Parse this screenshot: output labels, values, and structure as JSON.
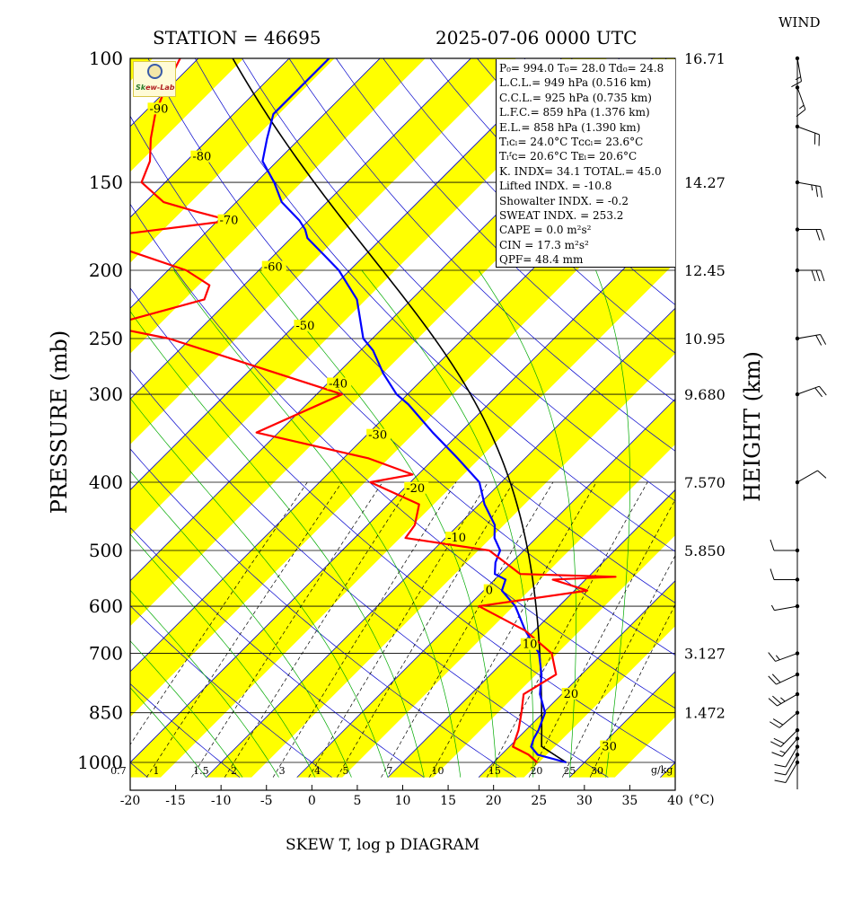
{
  "header": {
    "station": "STATION = 46695",
    "datetime": "2025-07-06 0000 UTC",
    "wind_label": "WIND",
    "footer": "SKEW T, log p DIAGRAM",
    "y_label_left": "PRESSURE (mb)",
    "y_label_right": "HEIGHT (km)",
    "unit_c": "(°C)",
    "unit_mix": "g/kg"
  },
  "logo": {
    "text_a": "Sk",
    "text_b": "ew-Lab"
  },
  "indices": [
    "P₀= 994.0 T₀= 28.0 Td₀= 24.8",
    "L.C.L.= 949 hPa (0.516 km)",
    "C.C.L.= 925 hPa (0.735 km)",
    "L.F.C.= 859 hPa (1.376 km)",
    "E.L.= 858 hPa (1.390 km)",
    "Tₗᴄₗ= 24.0°C Tᴄᴄₗ= 23.6°C",
    "Tₗᶠᴄ= 20.6°C  Tᴇₗ= 20.6°C",
    "K. INDX= 34.1  TOTAL.= 45.0",
    "Lifted INDX. = -10.8",
    "Showalter INDX. =   -0.2",
    "SWEAT INDX. =  253.2",
    "CAPE  =    0.0 m²s²",
    "CIN   =   17.3 m²s²",
    "QPF= 48.4 mm"
  ],
  "chart_data": {
    "type": "line",
    "title": "SKEW T, log p DIAGRAM",
    "xlabel": "(°C)",
    "ylabel": "PRESSURE (mb)",
    "y2label": "HEIGHT (km)",
    "xlim": [
      -20,
      40
    ],
    "ylim": [
      1050,
      100
    ],
    "y_scale": "log",
    "x_ticks": [
      -20,
      -15,
      -10,
      -5,
      0,
      5,
      10,
      15,
      20,
      25,
      30,
      35,
      40
    ],
    "x_tick_labels": [
      "-20",
      "-15",
      "-10",
      "-5",
      "0",
      "5",
      "10",
      "15",
      "20",
      "25",
      "30",
      "35",
      "40"
    ],
    "pressure_levels": [
      100,
      150,
      200,
      250,
      300,
      400,
      500,
      600,
      700,
      850,
      1000
    ],
    "pressure_labels": [
      "100",
      "150",
      "200",
      "250",
      "300",
      "400",
      "500",
      "600",
      "700",
      "850",
      "1000"
    ],
    "height_levels": [
      100,
      150,
      200,
      250,
      300,
      400,
      500,
      700,
      850
    ],
    "height_labels": [
      "16.71",
      "14.27",
      "12.45",
      "10.95",
      "9.680",
      "7.570",
      "5.850",
      "3.127",
      "1.472"
    ],
    "isotherm_labels": [
      {
        "t": -90,
        "p": 118,
        "text": "-90"
      },
      {
        "t": -80,
        "p": 138,
        "text": "-80"
      },
      {
        "t": -70,
        "p": 170,
        "text": "-70"
      },
      {
        "t": -60,
        "p": 198,
        "text": "-60"
      },
      {
        "t": -50,
        "p": 240,
        "text": "-50"
      },
      {
        "t": -40,
        "p": 290,
        "text": "-40"
      },
      {
        "t": -30,
        "p": 343,
        "text": "-30"
      },
      {
        "t": -20,
        "p": 408,
        "text": "-20"
      },
      {
        "t": -10,
        "p": 480,
        "text": "-10"
      },
      {
        "t": 0,
        "p": 570,
        "text": "0"
      },
      {
        "t": 10,
        "p": 680,
        "text": "10"
      },
      {
        "t": 20,
        "p": 800,
        "text": "20"
      },
      {
        "t": 30,
        "p": 950,
        "text": "30"
      }
    ],
    "mixing_ratio_labels": [
      "0.7",
      "1",
      "1.5",
      "2",
      "3",
      "4",
      "5",
      "7",
      "10",
      "15",
      "20",
      "25",
      "30"
    ],
    "mixing_ratio_values": [
      0.7,
      1,
      1.5,
      2,
      3,
      4,
      5,
      7,
      10,
      15,
      20,
      25,
      30
    ],
    "series": [
      {
        "name": "temperature",
        "color": "#0000ff",
        "p": [
          1000,
          975,
          950,
          925,
          900,
          850,
          800,
          750,
          700,
          650,
          600,
          570,
          550,
          540,
          520,
          500,
          480,
          460,
          430,
          400,
          370,
          340,
          310,
          300,
          280,
          260,
          250,
          220,
          200,
          190,
          180,
          175,
          170,
          160,
          150,
          140,
          130,
          120,
          110,
          100
        ],
        "t": [
          28.0,
          24.0,
          22.4,
          21.8,
          21.4,
          20.2,
          17.6,
          15.6,
          13.0,
          9.0,
          5.2,
          2.0,
          1.2,
          -0.6,
          -1.8,
          -2.6,
          -4.6,
          -6.0,
          -9.4,
          -12.4,
          -17.4,
          -23.0,
          -28.8,
          -31.2,
          -35.0,
          -38.6,
          -41.0,
          -46.0,
          -51.2,
          -54.6,
          -58.2,
          -59.4,
          -61.0,
          -65.0,
          -68.0,
          -71.6,
          -73.6,
          -75.6,
          -75.6,
          -75.6
        ]
      },
      {
        "name": "dewpoint",
        "color": "#ff0000",
        "p": [
          1000,
          975,
          950,
          900,
          850,
          800,
          750,
          700,
          650,
          600,
          570,
          550,
          545,
          540,
          500,
          480,
          460,
          430,
          400,
          390,
          370,
          340,
          300,
          250,
          240,
          220,
          210,
          200,
          180,
          170,
          165,
          160,
          150,
          140,
          130,
          120,
          110,
          100
        ],
        "t": [
          24.8,
          23.0,
          20.4,
          19.2,
          17.6,
          15.8,
          17.2,
          14.4,
          9.0,
          1.2,
          11.4,
          6.4,
          13.0,
          2.2,
          -3.8,
          -14.4,
          -14.8,
          -16.6,
          -24.4,
          -20.6,
          -27.2,
          -42.4,
          -37.2,
          -62.4,
          -70.6,
          -62.8,
          -63.8,
          -68.0,
          -82.0,
          -68.6,
          -73.4,
          -78.0,
          -82.6,
          -84.0,
          -86.4,
          -88.6,
          -90.4,
          -92.0
        ]
      }
    ],
    "wind": {
      "barbs": [
        {
          "p": 1000,
          "spd": 10,
          "dir": 210
        },
        {
          "p": 975,
          "spd": 10,
          "dir": 210
        },
        {
          "p": 950,
          "spd": 10,
          "dir": 210
        },
        {
          "p": 925,
          "spd": 15,
          "dir": 220
        },
        {
          "p": 900,
          "spd": 20,
          "dir": 225
        },
        {
          "p": 850,
          "spd": 20,
          "dir": 230
        },
        {
          "p": 800,
          "spd": 25,
          "dir": 240
        },
        {
          "p": 750,
          "spd": 20,
          "dir": 245
        },
        {
          "p": 700,
          "spd": 15,
          "dir": 250
        },
        {
          "p": 600,
          "spd": 5,
          "dir": 260
        },
        {
          "p": 550,
          "spd": 10,
          "dir": 270
        },
        {
          "p": 500,
          "spd": 10,
          "dir": 270
        },
        {
          "p": 400,
          "spd": 10,
          "dir": 60
        },
        {
          "p": 300,
          "spd": 20,
          "dir": 70
        },
        {
          "p": 250,
          "spd": 20,
          "dir": 80
        },
        {
          "p": 200,
          "spd": 30,
          "dir": 90
        },
        {
          "p": 175,
          "spd": 20,
          "dir": 90
        },
        {
          "p": 150,
          "spd": 25,
          "dir": 100
        },
        {
          "p": 125,
          "spd": 20,
          "dir": 110
        },
        {
          "p": 110,
          "spd": 15,
          "dir": 160
        },
        {
          "p": 100,
          "spd": 15,
          "dir": 170
        }
      ]
    },
    "colors": {
      "band": "#ffff00",
      "isotherm": "#0000cc",
      "dry_adiabat": "#0000cc",
      "moist_adiabat": "#00aa00",
      "mixing_ratio": "#000000",
      "parcel": "#000000"
    },
    "grid": true
  }
}
